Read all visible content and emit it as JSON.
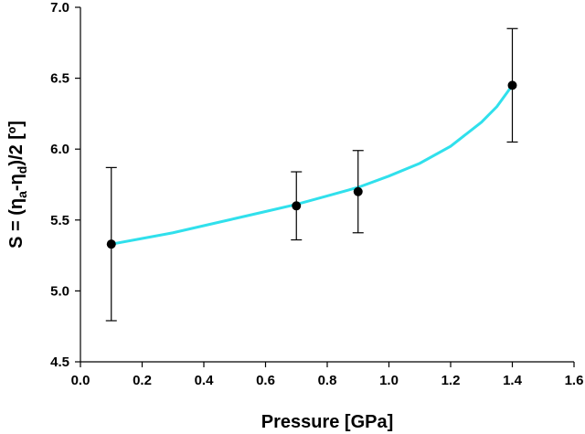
{
  "chart_data": {
    "type": "scatter",
    "xlabel": "Pressure [GPa]",
    "ylabel": "S = (ηₐ-ηᵈ)/2 [º]",
    "ylabel_parts": {
      "pre": "S = (η",
      "sub1": "a",
      "mid": "-η",
      "sub2": "d",
      "post": ")/2 [º]"
    },
    "xlim": [
      0.0,
      1.6
    ],
    "ylim": [
      4.5,
      7.0
    ],
    "xticks": [
      "0.0",
      "0.2",
      "0.4",
      "0.6",
      "0.8",
      "1.0",
      "1.2",
      "1.4",
      "1.6"
    ],
    "yticks": [
      "4.5",
      "5.0",
      "5.5",
      "6.0",
      "6.5",
      "7.0"
    ],
    "grid": false,
    "points": [
      {
        "x": 0.1,
        "y": 5.33,
        "err_low": 4.79,
        "err_high": 5.87
      },
      {
        "x": 0.7,
        "y": 5.6,
        "err_low": 5.36,
        "err_high": 5.84
      },
      {
        "x": 0.9,
        "y": 5.7,
        "err_low": 5.41,
        "err_high": 5.99
      },
      {
        "x": 1.4,
        "y": 6.45,
        "err_low": 6.05,
        "err_high": 6.85
      }
    ],
    "fit_curve": {
      "color": "#30e0ec",
      "x": [
        0.1,
        0.2,
        0.3,
        0.4,
        0.5,
        0.6,
        0.7,
        0.8,
        0.9,
        1.0,
        1.1,
        1.2,
        1.3,
        1.35,
        1.4
      ],
      "y": [
        5.33,
        5.37,
        5.41,
        5.46,
        5.51,
        5.56,
        5.61,
        5.67,
        5.73,
        5.81,
        5.9,
        6.02,
        6.19,
        6.3,
        6.45
      ]
    }
  }
}
